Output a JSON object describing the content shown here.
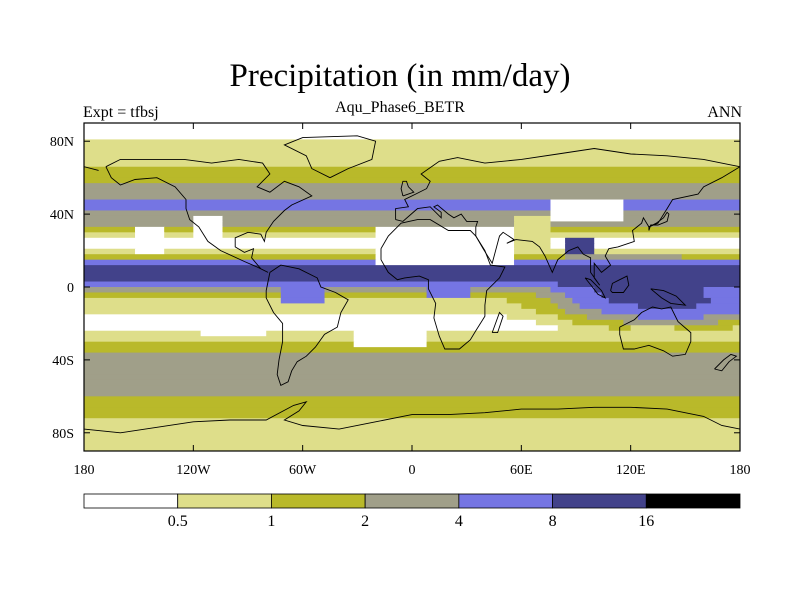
{
  "chart_data": {
    "type": "heatmap",
    "title": "Precipitation (in mm/day)",
    "subtitle": "Aqu_Phase6_BETR",
    "left_label": "Expt = tfbsj",
    "right_label": "ANN",
    "x_ticks": [
      "180",
      "120W",
      "60W",
      "0",
      "60E",
      "120E",
      "180"
    ],
    "x_tick_values": [
      -180,
      -120,
      -60,
      0,
      60,
      120,
      180
    ],
    "y_ticks": [
      "80N",
      "40N",
      "0",
      "40S",
      "80S"
    ],
    "y_tick_values": [
      80,
      40,
      0,
      -40,
      -80
    ],
    "xlim": [
      -180,
      180
    ],
    "ylim": [
      -90,
      90
    ],
    "colorbar": {
      "levels": [
        "0.5",
        "1",
        "2",
        "4",
        "8",
        "16"
      ],
      "colors": [
        "#ffffff",
        "#dede8a",
        "#b9b92a",
        "#a09f89",
        "#7575e3",
        "#42428a",
        "#000000"
      ]
    }
  }
}
